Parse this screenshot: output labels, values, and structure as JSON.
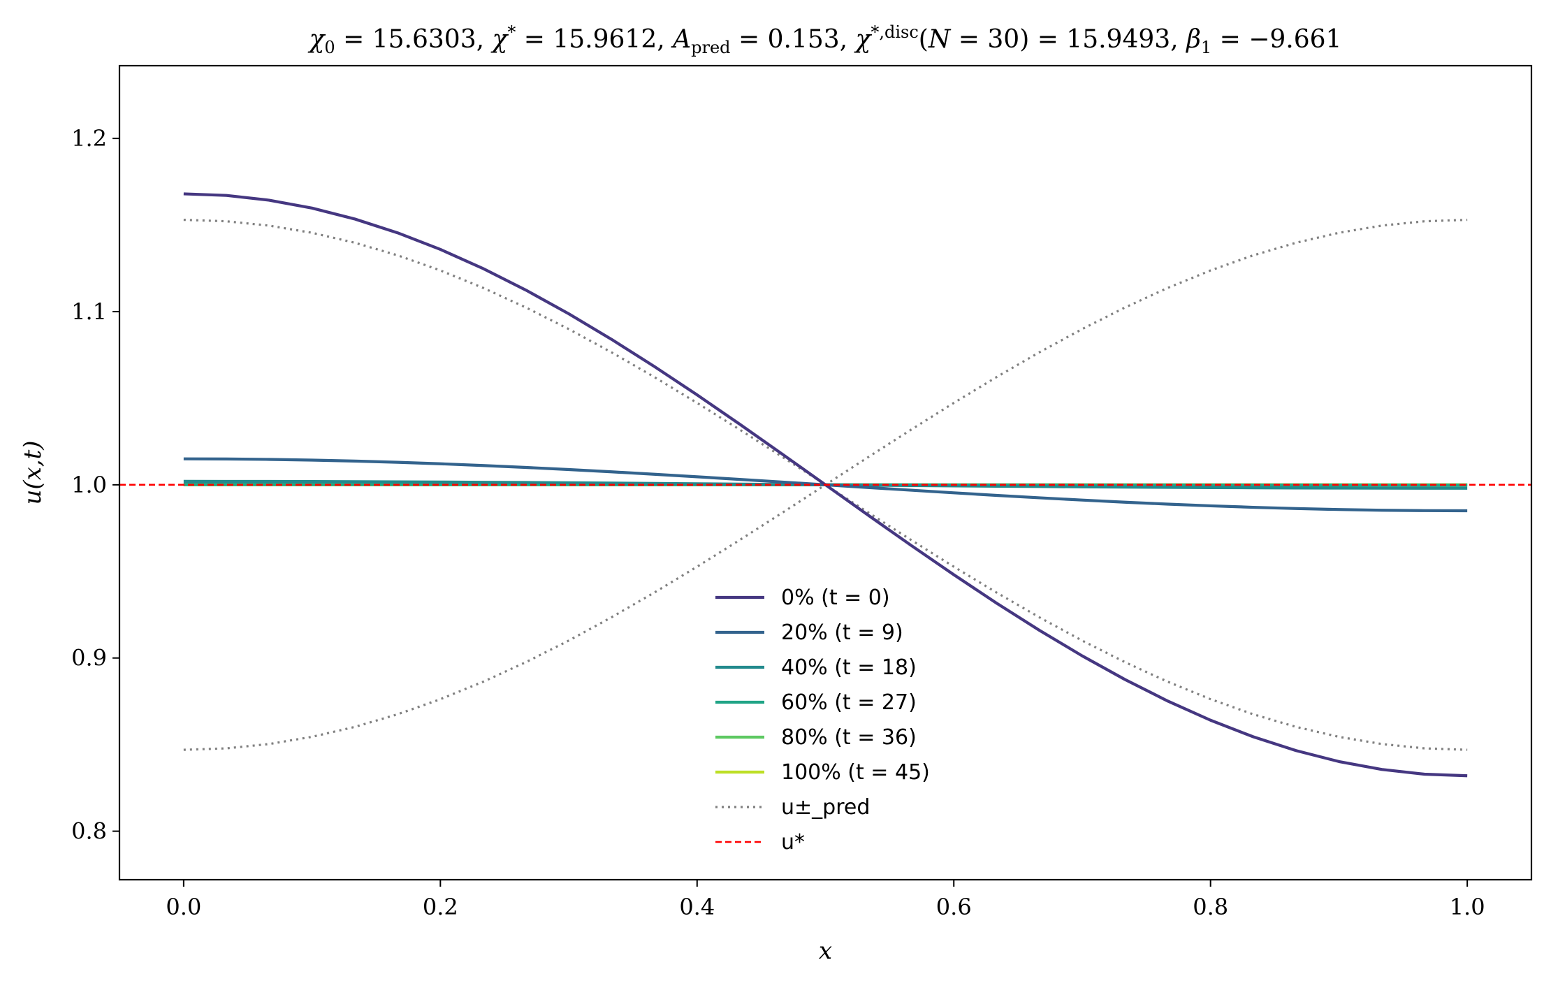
{
  "chart_data": {
    "type": "line",
    "title": "χ₀ = 15.6303,  χ* = 15.9612,  A_pred = 0.153,  χ^{*,disc}(N = 30) = 15.9493,  β₁ = −9.661",
    "xlabel": "x",
    "ylabel": "u(x,t)",
    "xlim": [
      -0.05,
      1.05
    ],
    "ylim": [
      0.772,
      1.242
    ],
    "xticks": [
      "0.0",
      "0.2",
      "0.4",
      "0.6",
      "0.8",
      "1.0"
    ],
    "yticks": [
      "0.8",
      "0.9",
      "1.0",
      "1.1",
      "1.2"
    ],
    "grid": false,
    "legend_position": "lower-center",
    "series": [
      {
        "name": "0% (t = 0)",
        "color": "#453781",
        "style": "solid",
        "amplitude": 0.168
      },
      {
        "name": "20% (t = 9)",
        "color": "#33638d",
        "style": "solid",
        "amplitude": 0.015
      },
      {
        "name": "40% (t = 18)",
        "color": "#238a8d",
        "style": "solid",
        "amplitude": 0.002
      },
      {
        "name": "60% (t = 27)",
        "color": "#20a486",
        "style": "solid",
        "amplitude": 0.0003
      },
      {
        "name": "80% (t = 36)",
        "color": "#5ec962",
        "style": "solid",
        "amplitude": 0.0
      },
      {
        "name": "100% (t = 45)",
        "color": "#bddf26",
        "style": "solid",
        "amplitude": 0.0
      },
      {
        "name": "u±_pred",
        "color": "#808080",
        "style": "dotted",
        "amplitude": 0.153,
        "paired": true
      },
      {
        "name": "u*",
        "color": "#ff0000",
        "style": "dashed",
        "value": 1.0
      }
    ],
    "x_range": [
      0.0,
      1.0
    ]
  }
}
